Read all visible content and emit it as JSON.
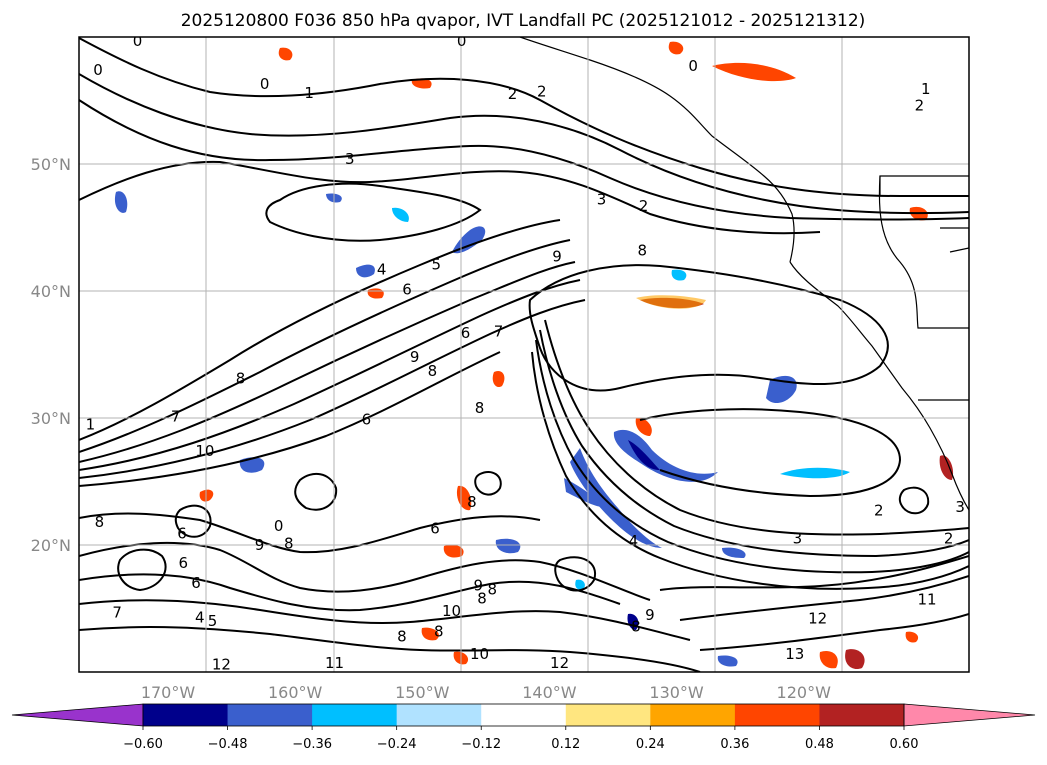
{
  "figure": {
    "title": "2025120800 F036 850 hPa qvapor, IVT Landfall PC (2025121012 - 2025121312)"
  },
  "chart_data": {
    "type": "map-contour",
    "title": "2025120800 F036 850 hPa qvapor, IVT Landfall PC (2025121012 - 2025121312)",
    "projection": "equirectangular",
    "lon_range": [
      -177,
      -107
    ],
    "lat_range": [
      10,
      60
    ],
    "grid": true,
    "x_ticks": [
      {
        "lon": -170,
        "label": "170°W"
      },
      {
        "lon": -160,
        "label": "160°W"
      },
      {
        "lon": -150,
        "label": "150°W"
      },
      {
        "lon": -140,
        "label": "140°W"
      },
      {
        "lon": -130,
        "label": "130°W"
      },
      {
        "lon": -120,
        "label": "120°W"
      }
    ],
    "y_ticks": [
      {
        "lat": 20,
        "label": "20°N"
      },
      {
        "lat": 30,
        "label": "30°N"
      },
      {
        "lat": 40,
        "label": "40°N"
      },
      {
        "lat": 50,
        "label": "50°N"
      }
    ],
    "colorbar": {
      "orientation": "horizontal",
      "extend": "both",
      "bounds": [
        -0.72,
        -0.6,
        -0.48,
        -0.36,
        -0.24,
        -0.12,
        0.12,
        0.24,
        0.36,
        0.48,
        0.6,
        0.72
      ],
      "colors": [
        "#9933cc",
        "#00008b",
        "#3a5fcd",
        "#00bfff",
        "#b0e2ff",
        "#ffffff",
        "#ffe680",
        "#ffa500",
        "#ff4500",
        "#b22222",
        "#ff88aa"
      ],
      "tick_labels": [
        "−0.60",
        "−0.48",
        "−0.36",
        "−0.24",
        "−0.12",
        "0.12",
        "0.24",
        "0.36",
        "0.48",
        "0.60"
      ]
    },
    "contour_labels": [
      {
        "text": "0",
        "lon": -175.5,
        "lat": 57.4
      },
      {
        "text": "0",
        "lon": -172.4,
        "lat": 59.7
      },
      {
        "text": "0",
        "lon": -162.4,
        "lat": 56.3
      },
      {
        "text": "1",
        "lon": -158.9,
        "lat": 55.6
      },
      {
        "text": "0",
        "lon": -146.9,
        "lat": 59.7
      },
      {
        "text": "2",
        "lon": -142.9,
        "lat": 55.5
      },
      {
        "text": "2",
        "lon": -140.6,
        "lat": 55.7
      },
      {
        "text": "0",
        "lon": -128.7,
        "lat": 57.7
      },
      {
        "text": "1",
        "lon": -110.4,
        "lat": 55.9
      },
      {
        "text": "2",
        "lon": -110.9,
        "lat": 54.6
      },
      {
        "text": "3",
        "lon": -155.7,
        "lat": 50.4
      },
      {
        "text": "3",
        "lon": -135.9,
        "lat": 47.2
      },
      {
        "text": "2",
        "lon": -132.6,
        "lat": 46.7
      },
      {
        "text": "8",
        "lon": -132.7,
        "lat": 43.2
      },
      {
        "text": "4",
        "lon": -153.2,
        "lat": 41.7
      },
      {
        "text": "5",
        "lon": -148.9,
        "lat": 42.1
      },
      {
        "text": "9",
        "lon": -139.4,
        "lat": 42.7
      },
      {
        "text": "6",
        "lon": -151.2,
        "lat": 40.1
      },
      {
        "text": "6",
        "lon": -146.6,
        "lat": 36.7
      },
      {
        "text": "7",
        "lon": -144.0,
        "lat": 36.8
      },
      {
        "text": "9",
        "lon": -150.6,
        "lat": 34.8
      },
      {
        "text": "8",
        "lon": -149.2,
        "lat": 33.7
      },
      {
        "text": "8",
        "lon": -164.3,
        "lat": 33.1
      },
      {
        "text": "7",
        "lon": -169.4,
        "lat": 30.1
      },
      {
        "text": "1",
        "lon": -176.1,
        "lat": 29.5
      },
      {
        "text": "10",
        "lon": -167.1,
        "lat": 27.4
      },
      {
        "text": "6",
        "lon": -154.4,
        "lat": 29.9
      },
      {
        "text": "8",
        "lon": -145.5,
        "lat": 30.8
      },
      {
        "text": "8",
        "lon": -146.1,
        "lat": 23.4
      },
      {
        "text": "8",
        "lon": -175.4,
        "lat": 21.8
      },
      {
        "text": "0",
        "lon": -161.3,
        "lat": 21.5
      },
      {
        "text": "6",
        "lon": -149.0,
        "lat": 21.3
      },
      {
        "text": "9",
        "lon": -162.8,
        "lat": 20.0
      },
      {
        "text": "8",
        "lon": -160.5,
        "lat": 20.1
      },
      {
        "text": "6",
        "lon": -168.9,
        "lat": 20.9
      },
      {
        "text": "6",
        "lon": -168.8,
        "lat": 18.6
      },
      {
        "text": "6",
        "lon": -167.8,
        "lat": 17.0
      },
      {
        "text": "9",
        "lon": -145.6,
        "lat": 16.8
      },
      {
        "text": "8",
        "lon": -145.3,
        "lat": 15.8
      },
      {
        "text": "8",
        "lon": -144.5,
        "lat": 16.5
      },
      {
        "text": "10",
        "lon": -147.7,
        "lat": 14.8
      },
      {
        "text": "8",
        "lon": -148.7,
        "lat": 13.2
      },
      {
        "text": "8",
        "lon": -151.6,
        "lat": 12.8
      },
      {
        "text": "7",
        "lon": -174.0,
        "lat": 14.7
      },
      {
        "text": "4",
        "lon": -167.5,
        "lat": 14.3
      },
      {
        "text": "5",
        "lon": -166.5,
        "lat": 14.0
      },
      {
        "text": "12",
        "lon": -165.8,
        "lat": 10.6
      },
      {
        "text": "11",
        "lon": -156.9,
        "lat": 10.7
      },
      {
        "text": "10",
        "lon": -145.5,
        "lat": 11.4
      },
      {
        "text": "12",
        "lon": -139.2,
        "lat": 10.7
      },
      {
        "text": "4",
        "lon": -133.4,
        "lat": 20.3
      },
      {
        "text": "9",
        "lon": -132.1,
        "lat": 14.5
      },
      {
        "text": "8",
        "lon": -133.2,
        "lat": 13.6
      },
      {
        "text": "12",
        "lon": -118.9,
        "lat": 14.2
      },
      {
        "text": "13",
        "lon": -120.7,
        "lat": 11.4
      },
      {
        "text": "2",
        "lon": -114.1,
        "lat": 22.7
      },
      {
        "text": "3",
        "lon": -120.5,
        "lat": 20.5
      },
      {
        "text": "2",
        "lon": -108.6,
        "lat": 20.5
      },
      {
        "text": "3",
        "lon": -107.7,
        "lat": 23.0
      },
      {
        "text": "11",
        "lon": -110.3,
        "lat": 15.7
      }
    ]
  }
}
